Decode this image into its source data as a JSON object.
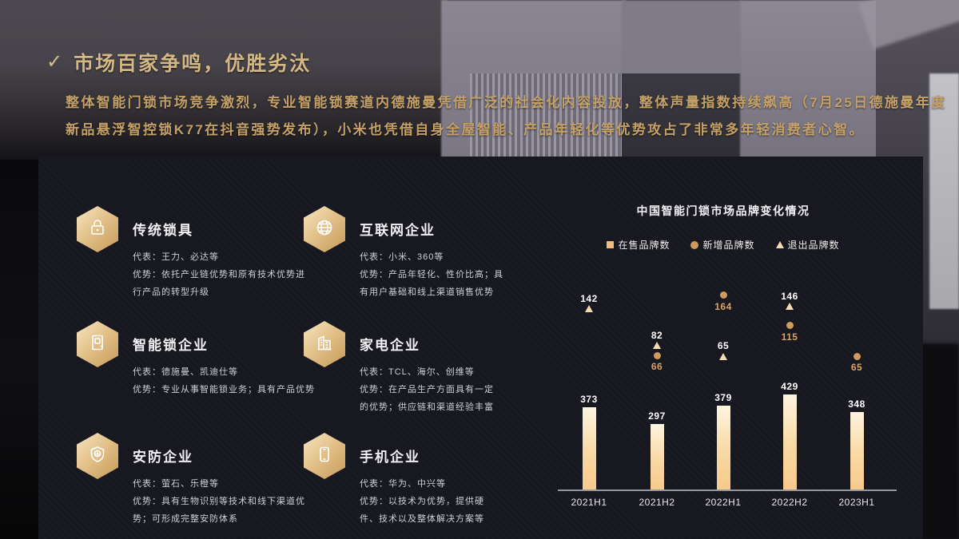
{
  "slide": {
    "check_icon": "✓",
    "title": "市场百家争鸣，优胜劣汰",
    "intro_lines": [
      "整体智能门锁市场竞争激烈，专业智能锁赛道内德施曼凭借广泛的社会化内容投放，整体声量指数持续飙高（7月25日德施曼年度",
      "新品悬浮智控锁K77在抖音强势发布），小米也凭借自身全屋智能、产品年轻化等优势攻占了非常多年轻消费者心智。"
    ]
  },
  "categories": [
    {
      "title": "传统锁具",
      "icon": "lock-icon",
      "lines": [
        "代表：王力、必达等",
        "优势：依托产业链优势和原有技术优势进",
        "行产品的转型升级"
      ]
    },
    {
      "title": "互联网企业",
      "icon": "globe-icon",
      "lines": [
        "代表：小米、360等",
        "优势：产品年轻化、性价比高；具",
        "有用户基础和线上渠道销售优势"
      ]
    },
    {
      "title": "智能锁企业",
      "icon": "smart-door-icon",
      "lines": [
        "代表：德施曼、凯迪仕等",
        "优势：专业从事智能锁业务；具有产品优势"
      ]
    },
    {
      "title": "家电企业",
      "icon": "building-icon",
      "lines": [
        "代表：TCL、海尔、创维等",
        "优势：在产品生产方面具有一定",
        "的优势；供应链和渠道经验丰富"
      ]
    },
    {
      "title": "安防企业",
      "icon": "shield-icon",
      "lines": [
        "代表：萤石、乐橙等",
        "优势：具有生物识别等技术和线下渠道优",
        "势；可形成完整安防体系"
      ]
    },
    {
      "title": "手机企业",
      "icon": "phone-icon",
      "lines": [
        "代表：华为、中兴等",
        "优势：以技术为优势，提供硬",
        "件、技术以及整体解决方案等"
      ]
    }
  ],
  "chart_data": {
    "type": "bar",
    "title": "中国智能门锁市场品牌变化情况",
    "categories": [
      "2021H1",
      "2021H2",
      "2022H1",
      "2022H2",
      "2023H1"
    ],
    "series": [
      {
        "name": "在售品牌数",
        "type": "bar",
        "marker": "square",
        "color": "#eebd7d",
        "label_color": "#ffffff",
        "values": [
          373,
          297,
          379,
          429,
          348
        ]
      },
      {
        "name": "新增品牌数",
        "type": "scatter",
        "marker": "circle",
        "color": "#cf9a5c",
        "label_color": "#d9a55e",
        "values": [
          null,
          66,
          164,
          115,
          65
        ]
      },
      {
        "name": "退出品牌数",
        "type": "scatter",
        "marker": "triangle",
        "color": "#f3dcb2",
        "label_color": "#ffffff",
        "values": [
          142,
          82,
          65,
          146,
          null
        ]
      }
    ],
    "ylim": [
      0,
      450
    ],
    "grid": false,
    "legend_position": "top"
  },
  "colors": {
    "accent_gold": "#d3b886",
    "paragraph_gold": "#c4a167",
    "panel_bg": "#17171f",
    "axis": "#97979f",
    "bar_top": "#fdf4e0",
    "bar_bottom": "#f6c98c"
  }
}
